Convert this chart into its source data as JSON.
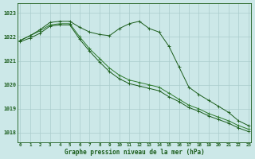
{
  "title": "Graphe pression niveau de la mer (hPa)",
  "bg_color": "#cce8e8",
  "grid_color": "#aacccc",
  "line_color_dark": "#1a5c1a",
  "line_color_mid": "#2d7a2d",
  "xlabel_color": "#1a5c1a",
  "x_ticks": [
    0,
    1,
    2,
    3,
    4,
    5,
    6,
    7,
    8,
    9,
    10,
    11,
    12,
    13,
    14,
    15,
    16,
    17,
    18,
    19,
    20,
    21,
    22,
    23
  ],
  "y_ticks": [
    1018,
    1019,
    1020,
    1021,
    1022,
    1023
  ],
  "ylim": [
    1017.6,
    1023.4
  ],
  "xlim": [
    -0.3,
    23.3
  ],
  "line1": [
    1021.85,
    1022.05,
    1022.3,
    1022.6,
    1022.65,
    1022.65,
    1022.4,
    1022.2,
    1022.1,
    1022.05,
    1022.35,
    1022.55,
    1022.65,
    1022.35,
    1022.2,
    1021.6,
    1020.75,
    1019.9,
    1019.6,
    1019.35,
    1019.1,
    1018.85,
    1018.5,
    1018.3
  ],
  "line2": [
    1021.85,
    1022.05,
    1022.25,
    1022.5,
    1022.55,
    1022.55,
    1022.0,
    1021.5,
    1021.1,
    1020.7,
    1020.4,
    1020.2,
    1020.1,
    1020.0,
    1019.9,
    1019.65,
    1019.4,
    1019.15,
    1019.0,
    1018.8,
    1018.65,
    1018.5,
    1018.3,
    1018.15
  ],
  "line3": [
    1021.8,
    1021.95,
    1022.15,
    1022.45,
    1022.5,
    1022.5,
    1021.9,
    1021.4,
    1020.95,
    1020.55,
    1020.25,
    1020.05,
    1019.95,
    1019.85,
    1019.75,
    1019.5,
    1019.3,
    1019.05,
    1018.9,
    1018.7,
    1018.55,
    1018.4,
    1018.2,
    1018.05
  ]
}
